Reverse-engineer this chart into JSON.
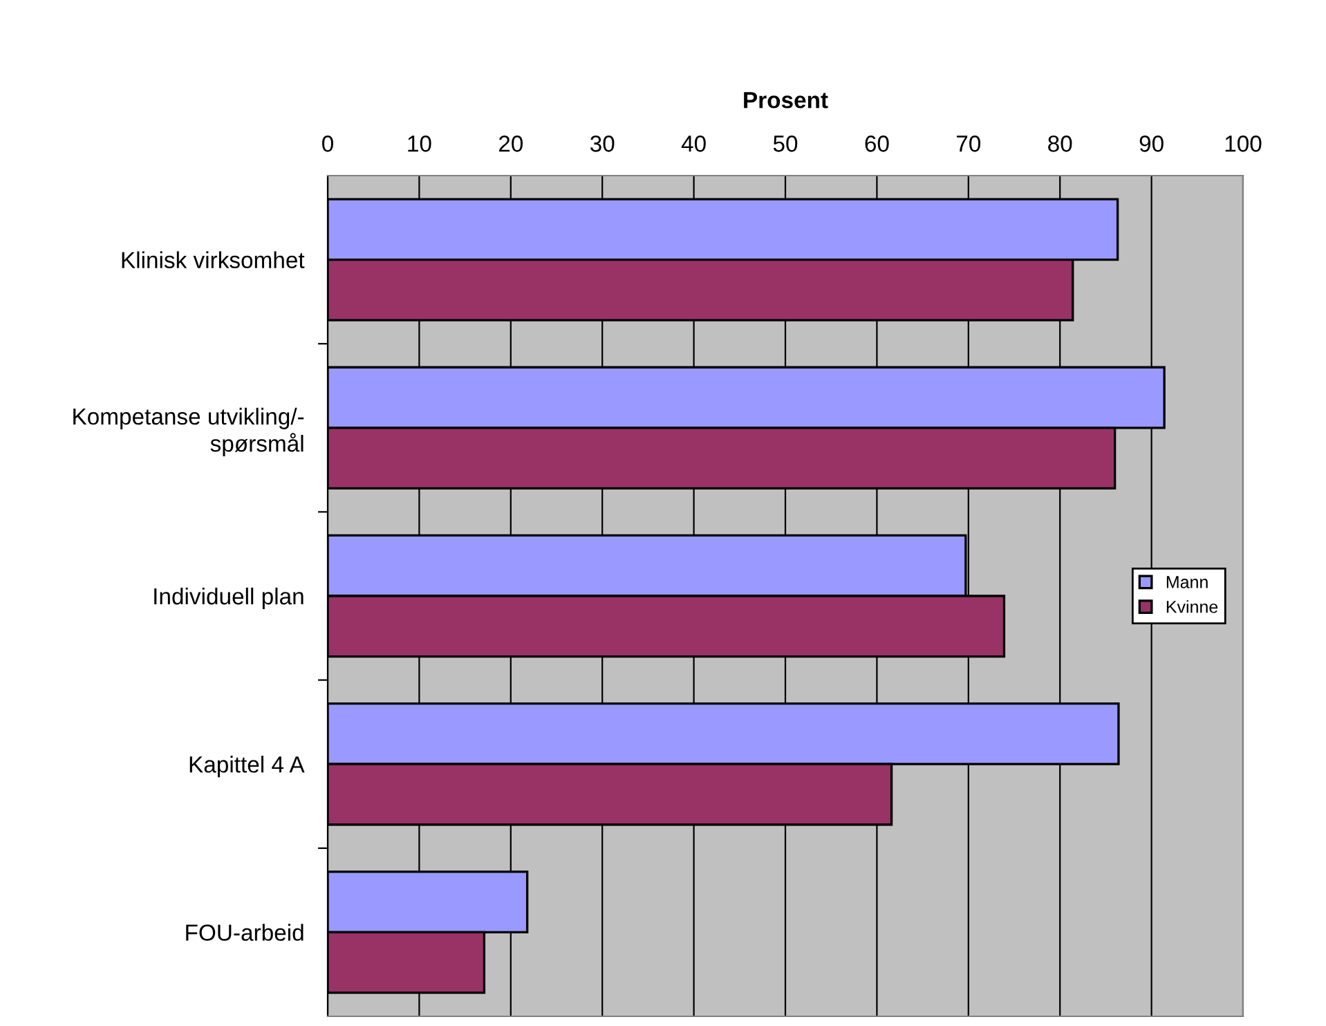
{
  "chart_data": {
    "type": "bar",
    "orientation": "horizontal",
    "xlabel": "Prosent",
    "categories": [
      "Klinisk virksomhet",
      "Kompetanse utvikling/-\nspørsmål",
      "Individuell plan",
      "Kapittel 4 A",
      "FOU-arbeid"
    ],
    "series": [
      {
        "name": "Mann",
        "color": "#9999ff",
        "values": [
          86.3,
          91.4,
          69.7,
          86.4,
          21.8
        ]
      },
      {
        "name": "Kvinne",
        "color": "#993366",
        "values": [
          81.4,
          86.0,
          73.9,
          61.6,
          17.1
        ]
      }
    ],
    "xlim": [
      0,
      100
    ],
    "xticks": [
      0,
      10,
      20,
      30,
      40,
      50,
      60,
      70,
      80,
      90,
      100
    ],
    "grid": "x",
    "legend": "right"
  }
}
